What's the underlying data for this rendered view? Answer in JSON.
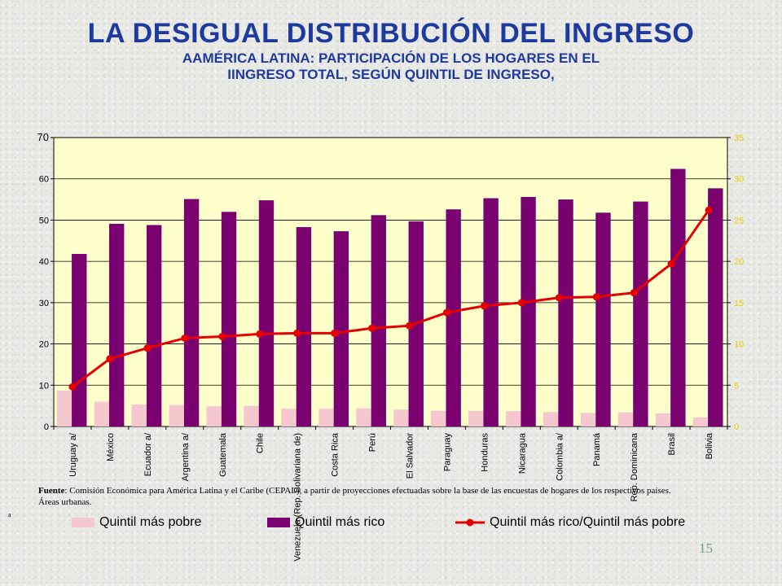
{
  "header": {
    "title": "LA DESIGUAL DISTRIBUCIÓN DEL INGRESO",
    "subtitle_line1": "AAMÉRICA LATINA: PARTICIPACIÓN DE LOS HOGARES EN EL",
    "subtitle_line2": "IINGRESO TOTAL, SEGÚN QUINTIL DE INGRESO,"
  },
  "footer": {
    "source_label": "Fuente",
    "source_text": ": Comisión Económica para América Latina y el Caribe (CEPAL), a partir de proyecciones efectuadas sobre la base de las encuestas de hogares de los respectivos países.",
    "note_text": "Áreas urbanas.",
    "note_mark": "a",
    "page_number": "15"
  },
  "legend": {
    "poor_label": "Quintil más pobre",
    "rich_label": "Quintil más rico",
    "ratio_label": "Quintil más rico/Quintil más pobre"
  },
  "colors": {
    "poor": "#f5c8d0",
    "rich": "#7a0070",
    "ratio": "#e60000",
    "plot_bg": "#ffffcc",
    "right_axis": "#e6d200"
  },
  "chart_data": {
    "type": "bar",
    "categories": [
      "Uruguay a/",
      "México",
      "Ecuador a/",
      "Argentina a/",
      "Guatemala",
      "Chile",
      "Venezuela (Rep. Bolivariana de)",
      "Costa Rica",
      "Perú",
      "El Salvador",
      "Paraguay",
      "Honduras",
      "Nicaragua",
      "Colombia a/",
      "Panamá",
      "Rep. Dominicana",
      "Brasil",
      "Bolivia"
    ],
    "series": [
      {
        "name": "Quintil más pobre",
        "type": "bar",
        "axis": "left",
        "values": [
          8.7,
          6.0,
          5.3,
          5.2,
          4.9,
          5.0,
          4.3,
          4.3,
          4.4,
          4.1,
          3.8,
          3.8,
          3.7,
          3.5,
          3.3,
          3.4,
          3.2,
          2.2
        ]
      },
      {
        "name": "Quintil más rico",
        "type": "bar",
        "axis": "left",
        "values": [
          41.8,
          49.1,
          48.8,
          55.1,
          52.0,
          54.8,
          48.3,
          47.3,
          51.2,
          49.7,
          52.6,
          55.3,
          55.6,
          55.0,
          51.8,
          54.5,
          62.4,
          57.7
        ]
      },
      {
        "name": "Quintil más rico/Quintil más pobre",
        "type": "line",
        "axis": "right",
        "values": [
          4.8,
          8.2,
          9.5,
          10.7,
          10.9,
          11.2,
          11.3,
          11.3,
          11.9,
          12.2,
          13.8,
          14.6,
          15.0,
          15.6,
          15.7,
          16.2,
          19.7,
          26.2
        ]
      }
    ],
    "ylim": [
      0,
      70
    ],
    "yticks": [
      0,
      10,
      20,
      30,
      40,
      50,
      60,
      70
    ],
    "y2lim": [
      0,
      35
    ],
    "y2ticks": [
      0,
      5,
      10,
      15,
      20,
      25,
      30,
      35
    ],
    "grid": true,
    "legend_position": "bottom"
  }
}
